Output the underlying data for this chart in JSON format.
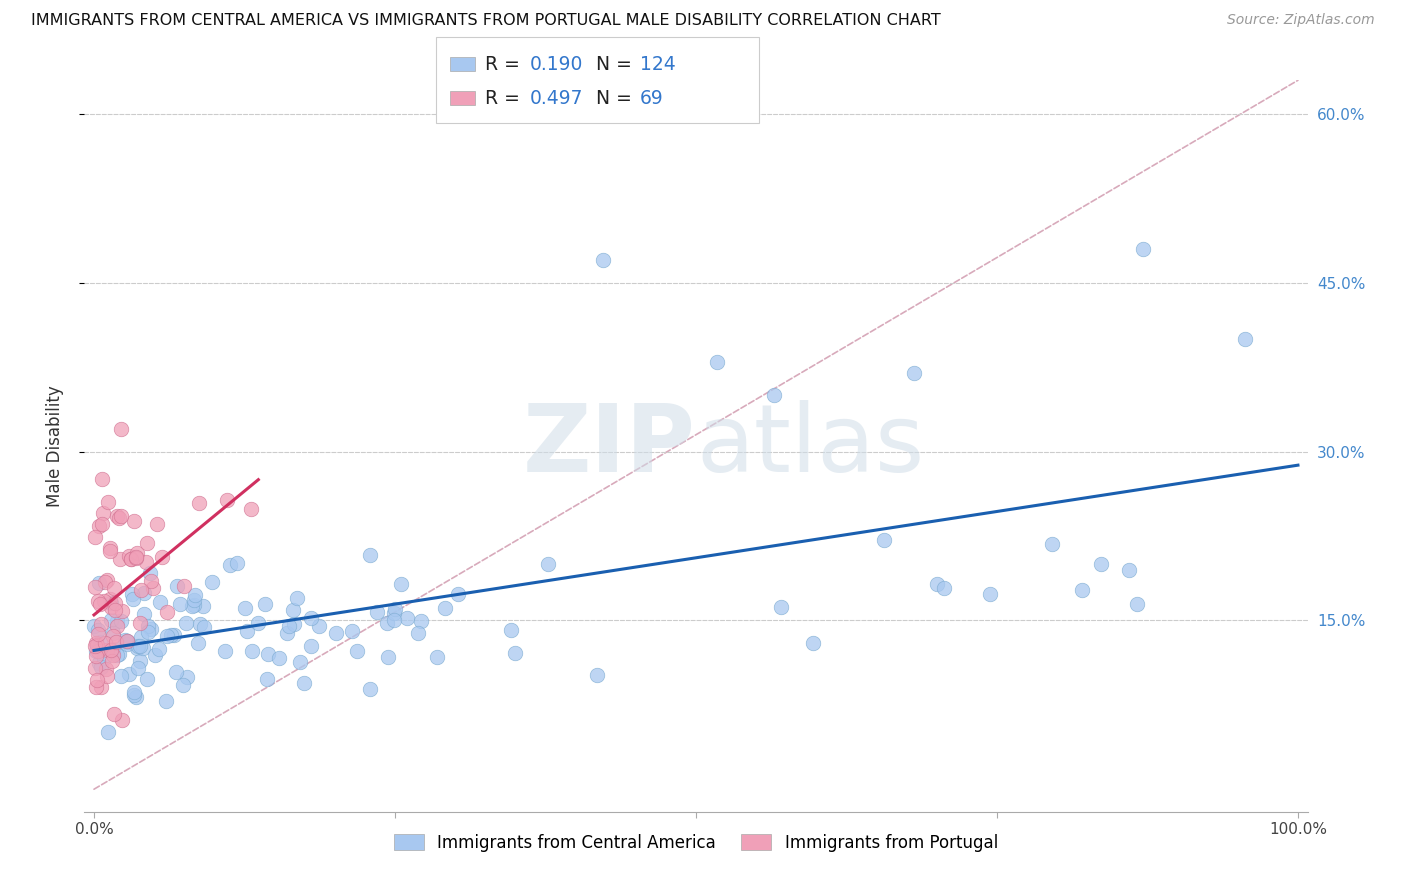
{
  "title": "IMMIGRANTS FROM CENTRAL AMERICA VS IMMIGRANTS FROM PORTUGAL MALE DISABILITY CORRELATION CHART",
  "source": "Source: ZipAtlas.com",
  "ylabel": "Male Disability",
  "xlim": [
    0.0,
    1.0
  ],
  "ylim": [
    0.0,
    0.63
  ],
  "yticks": [
    0.15,
    0.3,
    0.45,
    0.6
  ],
  "ytick_labels": [
    "15.0%",
    "30.0%",
    "45.0%",
    "60.0%"
  ],
  "blue_R": 0.19,
  "blue_N": 124,
  "pink_R": 0.497,
  "pink_N": 69,
  "blue_color": "#a8c8f0",
  "blue_edge_color": "#7aaad0",
  "blue_line_color": "#1a5fb0",
  "pink_color": "#f0a0b8",
  "pink_edge_color": "#d07090",
  "pink_line_color": "#d03060",
  "diagonal_color": "#d8aabb",
  "grid_color": "#cccccc",
  "legend_label_blue": "Immigrants from Central America",
  "legend_label_pink": "Immigrants from Portugal",
  "watermark_zip": "ZIP",
  "watermark_atlas": "atlas",
  "title_fontsize": 11.5,
  "source_fontsize": 10,
  "axis_label_fontsize": 11,
  "legend_fontsize": 13
}
